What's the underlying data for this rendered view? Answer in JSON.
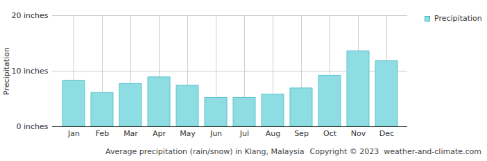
{
  "chart_data": {
    "type": "bar",
    "title": "Average precipitation (rain/snow) in Klang, Malaysia",
    "annotations": [
      "Copyright © 2023  weather-and-climate.com"
    ],
    "y_label": "Precipitation",
    "categories": [
      "Jan",
      "Feb",
      "Mar",
      "Apr",
      "May",
      "Jun",
      "Jul",
      "Aug",
      "Sep",
      "Oct",
      "Nov",
      "Dec"
    ],
    "series": [
      {
        "name": "Precipitation",
        "color": "#8edde2",
        "values": [
          8.3,
          6.1,
          7.7,
          8.9,
          7.4,
          5.2,
          5.2,
          5.8,
          6.9,
          9.2,
          13.6,
          11.8
        ]
      }
    ],
    "ylim": [
      0,
      20
    ],
    "yticks": [
      {
        "value": 0,
        "label": "0 inches"
      },
      {
        "value": 10,
        "label": "10 inches"
      },
      {
        "value": 20,
        "label": "20 inches"
      }
    ],
    "grid": true,
    "legend": "top-right"
  }
}
